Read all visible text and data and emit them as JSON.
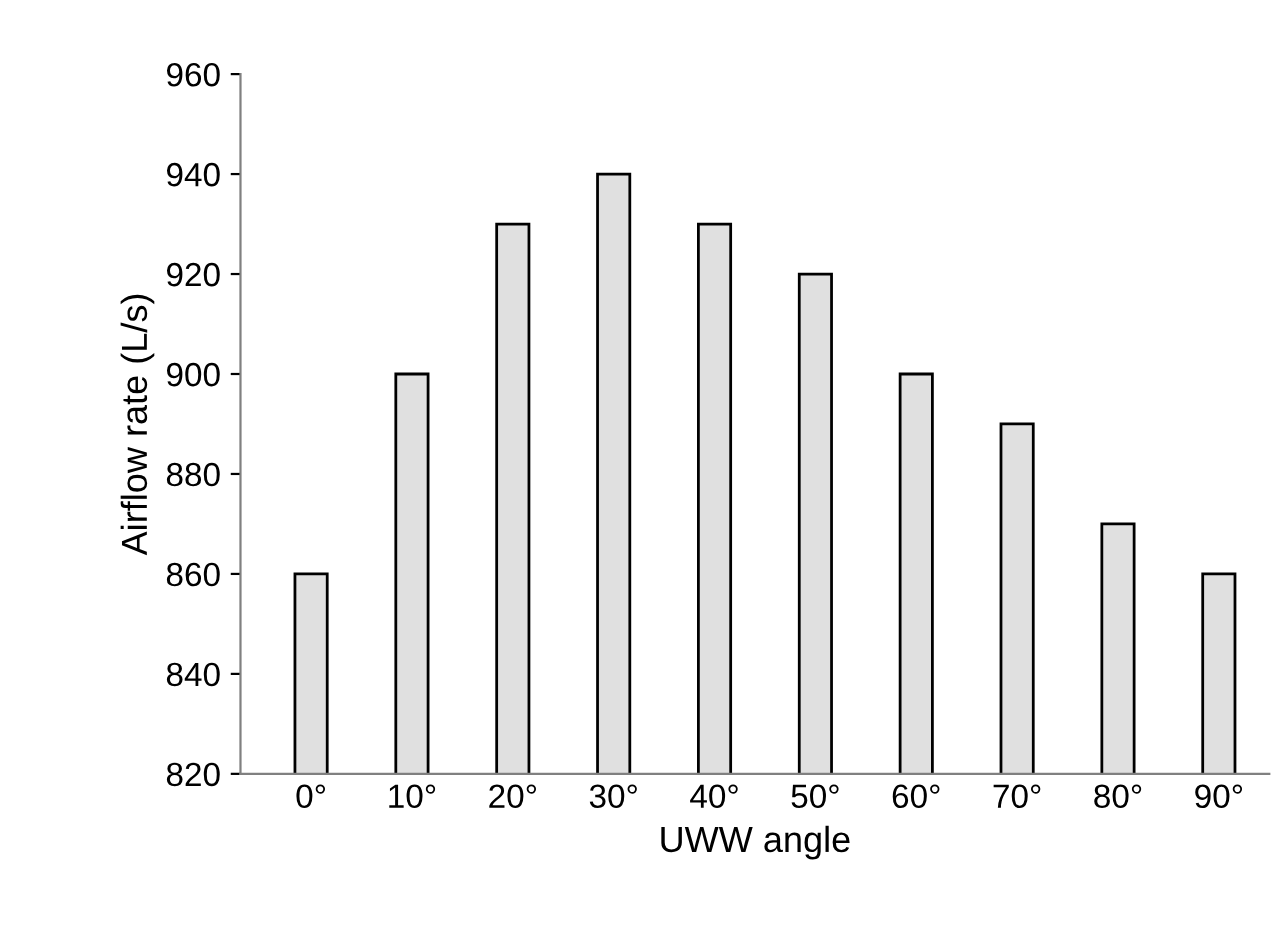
{
  "chart_data": {
    "type": "bar",
    "xlabel": "UWW angle",
    "ylabel": "Airflow rate (L/s)",
    "categories": [
      "0°",
      "10°",
      "20°",
      "30°",
      "40°",
      "50°",
      "60°",
      "70°",
      "80°",
      "90°"
    ],
    "values": [
      860,
      900,
      930,
      940,
      930,
      920,
      900,
      890,
      870,
      860
    ],
    "color": "#e0e0e0",
    "ylim": [
      820,
      960
    ],
    "yticks": [
      820,
      840,
      860,
      880,
      900,
      920,
      940,
      960
    ],
    "grid": false
  }
}
